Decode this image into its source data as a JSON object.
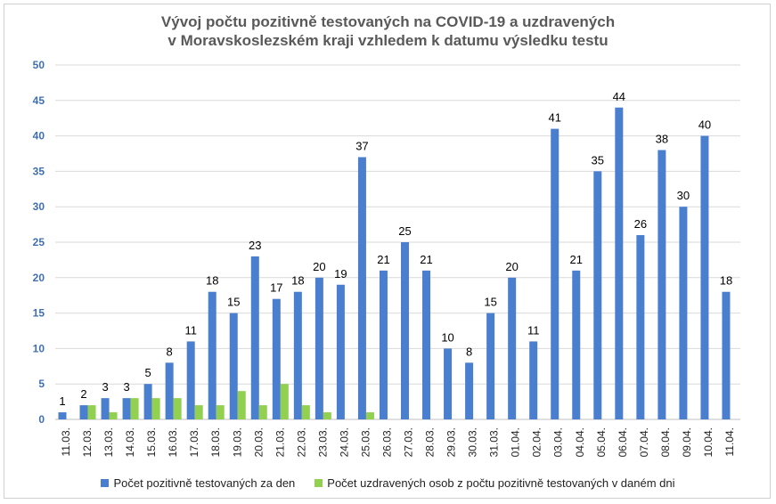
{
  "chart_data": {
    "type": "bar",
    "title": "Vývoj počtu pozitivně testovaných na COVID-19 a uzdravených",
    "subtitle": "v Moravskoslezském kraji vzhledem k datumu výsledku testu",
    "xlabel": "",
    "ylabel": "",
    "ylim": [
      0,
      50
    ],
    "yticks": [
      0,
      5,
      10,
      15,
      20,
      25,
      30,
      35,
      40,
      45,
      50
    ],
    "grid": true,
    "legend_position": "bottom",
    "categories": [
      "11.03.",
      "12.03.",
      "13.03.",
      "14.03.",
      "15.03.",
      "16.03.",
      "17.03.",
      "18.03.",
      "19.03.",
      "20.03.",
      "21.03.",
      "22.03.",
      "23.03.",
      "24.03.",
      "25.03.",
      "26.03.",
      "27.03.",
      "28.03.",
      "29.03.",
      "30.03.",
      "31.03.",
      "01.04.",
      "02.04.",
      "03.04.",
      "04.04.",
      "05.04.",
      "06.04.",
      "07.04.",
      "08.04.",
      "09.04.",
      "10.04.",
      "11.04."
    ],
    "series": [
      {
        "name": "Počet pozitivně testovaných za den",
        "color": "#4a7fcf",
        "labeled": true,
        "values": [
          1,
          2,
          3,
          3,
          5,
          8,
          11,
          18,
          15,
          23,
          17,
          18,
          20,
          19,
          37,
          21,
          25,
          21,
          10,
          8,
          15,
          20,
          11,
          41,
          21,
          35,
          44,
          26,
          38,
          30,
          40,
          18
        ]
      },
      {
        "name": "Počet uzdravených osob z počtu pozitivně testovaných v daném dni",
        "color": "#92d050",
        "labeled": false,
        "values": [
          0,
          2,
          1,
          3,
          3,
          3,
          2,
          2,
          4,
          2,
          5,
          2,
          1,
          0,
          1,
          0,
          0,
          0,
          0,
          0,
          0,
          0,
          0,
          0,
          0,
          0,
          0,
          0,
          0,
          0,
          0,
          0
        ]
      }
    ]
  }
}
